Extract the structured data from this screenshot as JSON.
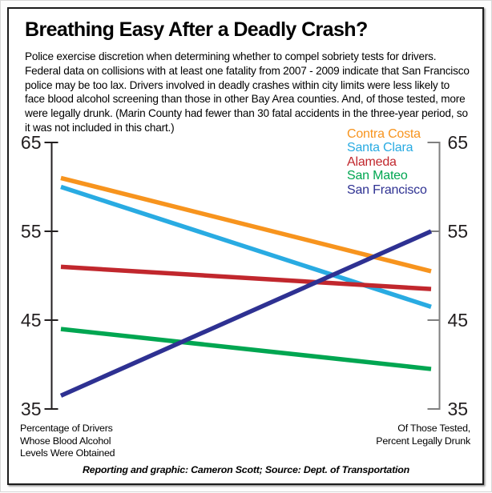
{
  "page": {
    "description": "Police exercise discretion when determining whether to compel sobriety tests for drivers. Federal data on collisions with at least one fatality from 2007 - 2009 indicate that San Francisco police may be too lax. Drivers involved in deadly crashes within city limits were less likely to face blood alcohol screening than those in other Bay Area counties. And, of those tested, more were legally drunk. (Marin County had fewer than 30 fatal accidents in the three-year period, so it was not included in this chart.)",
    "credit": "Reporting and graphic: Cameron Scott; Source: Dept. of Transportation"
  },
  "chart_data": {
    "type": "line",
    "variant": "slopegraph",
    "title": "Breathing Easy After a Deadly Crash?",
    "ylim": [
      35,
      65
    ],
    "yticks": [
      65,
      55,
      45,
      35
    ],
    "grid": false,
    "legend_position": "top-right",
    "x_labels": [
      "Percentage of Drivers\nWhose Blood Alcohol\nLevels Were Obtained",
      "Of Those Tested,\nPercent Legally Drunk"
    ],
    "series": [
      {
        "name": "Contra Costa",
        "color": "#F7941E",
        "values": [
          61,
          50.5
        ]
      },
      {
        "name": "Santa Clara",
        "color": "#29ABE2",
        "values": [
          60,
          46.5
        ]
      },
      {
        "name": "Alameda",
        "color": "#C1272D",
        "values": [
          51,
          48.5
        ]
      },
      {
        "name": "San Mateo",
        "color": "#00A651",
        "values": [
          44,
          39.5
        ]
      },
      {
        "name": "San Francisco",
        "color": "#2E3192",
        "values": [
          36.5,
          55
        ]
      }
    ],
    "draw_order": [
      "Santa Clara",
      "San Mateo",
      "Alameda",
      "Contra Costa",
      "San Francisco"
    ],
    "left_axis_color": "#231F20",
    "right_axis_color": "#808080"
  }
}
